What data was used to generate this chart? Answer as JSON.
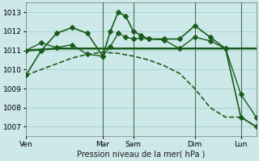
{
  "background_color": "#cce8e8",
  "grid_color": "#aacfcf",
  "line_color": "#1a5c1a",
  "xlabel": "Pression niveau de la mer( hPa )",
  "ylim": [
    1006.5,
    1013.5
  ],
  "yticks": [
    1007,
    1008,
    1009,
    1010,
    1011,
    1012,
    1013
  ],
  "xtick_labels": [
    "Ven",
    "Mar",
    "Sam",
    "Dim",
    "Lun"
  ],
  "xtick_positions": [
    0,
    10,
    14,
    22,
    28
  ],
  "xlim": [
    0,
    30
  ],
  "series": [
    {
      "x": [
        0,
        2,
        4,
        6,
        8,
        10,
        11,
        12,
        13,
        14,
        15,
        16,
        18,
        20,
        22,
        24,
        26,
        28,
        30
      ],
      "y": [
        1009.7,
        1011.0,
        1011.9,
        1012.2,
        1011.9,
        1010.7,
        1012.0,
        1013.0,
        1012.8,
        1012.0,
        1011.8,
        1011.6,
        1011.6,
        1011.6,
        1012.3,
        1011.7,
        1011.1,
        1007.5,
        1007.0
      ],
      "marker": "D",
      "markersize": 3.0,
      "linewidth": 1.2,
      "dashed": false
    },
    {
      "x": [
        0,
        4,
        8,
        12,
        16,
        20,
        24,
        28,
        30
      ],
      "y": [
        1011.0,
        1011.1,
        1011.1,
        1011.1,
        1011.1,
        1011.1,
        1011.1,
        1011.1,
        1011.1
      ],
      "marker": null,
      "markersize": 0,
      "linewidth": 1.8,
      "dashed": false
    },
    {
      "x": [
        0,
        2,
        4,
        6,
        8,
        10,
        12,
        14,
        16,
        18,
        20,
        22,
        24,
        26,
        28,
        30
      ],
      "y": [
        1009.7,
        1010.0,
        1010.3,
        1010.6,
        1010.8,
        1010.9,
        1010.85,
        1010.7,
        1010.5,
        1010.2,
        1009.8,
        1009.0,
        1008.0,
        1007.5,
        1007.5,
        1007.0
      ],
      "marker": null,
      "markersize": 0,
      "linewidth": 1.2,
      "dashed": true
    },
    {
      "x": [
        0,
        2,
        4,
        6,
        8,
        10,
        11,
        12,
        13,
        14,
        15,
        16,
        18,
        20,
        22,
        24,
        26,
        28,
        30
      ],
      "y": [
        1011.0,
        1011.4,
        1011.15,
        1011.3,
        1010.8,
        1010.7,
        1011.2,
        1011.9,
        1011.7,
        1011.6,
        1011.65,
        1011.6,
        1011.55,
        1011.1,
        1011.7,
        1011.5,
        1011.1,
        1008.7,
        1007.5
      ],
      "marker": "D",
      "markersize": 3.0,
      "linewidth": 1.0,
      "dashed": false
    }
  ],
  "vlines": [
    10,
    14,
    22,
    28
  ],
  "vline_color": "#2d5a2d",
  "vline_alpha": 0.8,
  "vline_lw": 0.8
}
